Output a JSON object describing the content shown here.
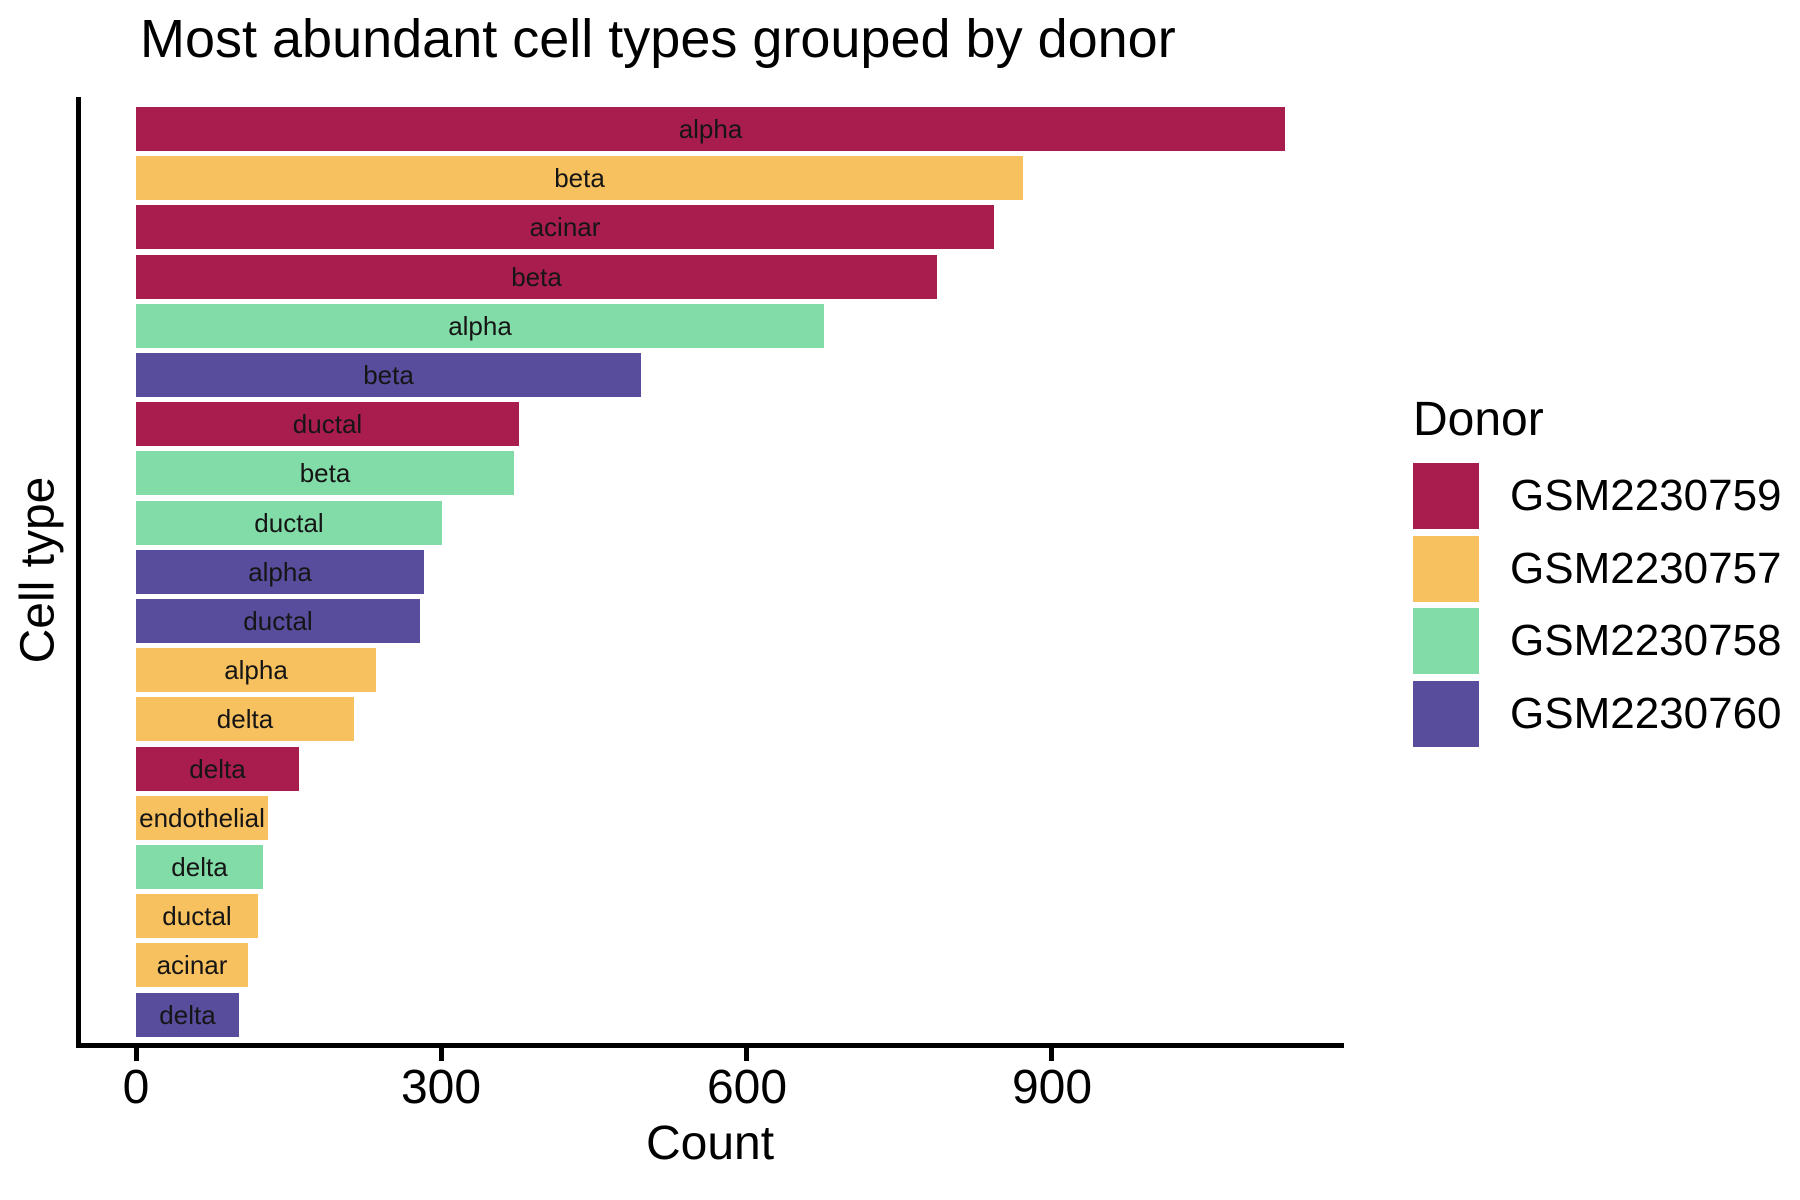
{
  "chart_data": {
    "type": "bar",
    "orientation": "horizontal",
    "title": "Most abundant cell types grouped by donor",
    "xlabel": "Count",
    "ylabel": "Cell type",
    "x_ticks": [
      0,
      300,
      600,
      900
    ],
    "xlim": [
      0,
      1188
    ],
    "grid": false,
    "legend": {
      "title": "Donor",
      "position": "right",
      "entries": [
        {
          "label": "GSM2230759",
          "color": "#A81D4D"
        },
        {
          "label": "GSM2230757",
          "color": "#F7C15F"
        },
        {
          "label": "GSM2230758",
          "color": "#82DCA8"
        },
        {
          "label": "GSM2230760",
          "color": "#584C9C"
        }
      ]
    },
    "bars": [
      {
        "label": "alpha",
        "donor": "GSM2230759",
        "value": 1129
      },
      {
        "label": "beta",
        "donor": "GSM2230757",
        "value": 872
      },
      {
        "label": "acinar",
        "donor": "GSM2230759",
        "value": 843
      },
      {
        "label": "beta",
        "donor": "GSM2230759",
        "value": 787
      },
      {
        "label": "alpha",
        "donor": "GSM2230758",
        "value": 676
      },
      {
        "label": "beta",
        "donor": "GSM2230760",
        "value": 496
      },
      {
        "label": "ductal",
        "donor": "GSM2230759",
        "value": 376
      },
      {
        "label": "beta",
        "donor": "GSM2230758",
        "value": 371
      },
      {
        "label": "ductal",
        "donor": "GSM2230758",
        "value": 301
      },
      {
        "label": "alpha",
        "donor": "GSM2230760",
        "value": 283
      },
      {
        "label": "ductal",
        "donor": "GSM2230760",
        "value": 279
      },
      {
        "label": "alpha",
        "donor": "GSM2230757",
        "value": 236
      },
      {
        "label": "delta",
        "donor": "GSM2230757",
        "value": 214
      },
      {
        "label": "delta",
        "donor": "GSM2230759",
        "value": 160
      },
      {
        "label": "endothelial",
        "donor": "GSM2230757",
        "value": 130
      },
      {
        "label": "delta",
        "donor": "GSM2230758",
        "value": 125
      },
      {
        "label": "ductal",
        "donor": "GSM2230757",
        "value": 120
      },
      {
        "label": "acinar",
        "donor": "GSM2230757",
        "value": 110
      },
      {
        "label": "delta",
        "donor": "GSM2230760",
        "value": 101
      }
    ]
  }
}
